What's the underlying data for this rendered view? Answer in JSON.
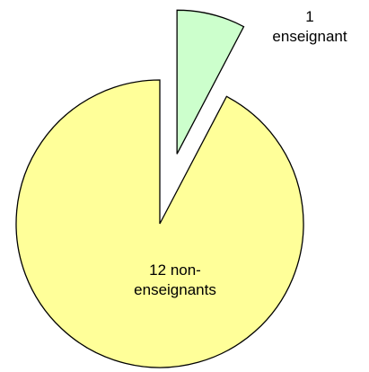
{
  "chart_data": {
    "type": "pie",
    "categories": [
      "enseignant",
      "non-enseignants"
    ],
    "values": [
      1,
      12
    ],
    "colors": [
      "#ccffcc",
      "#ffff99"
    ]
  }
}
